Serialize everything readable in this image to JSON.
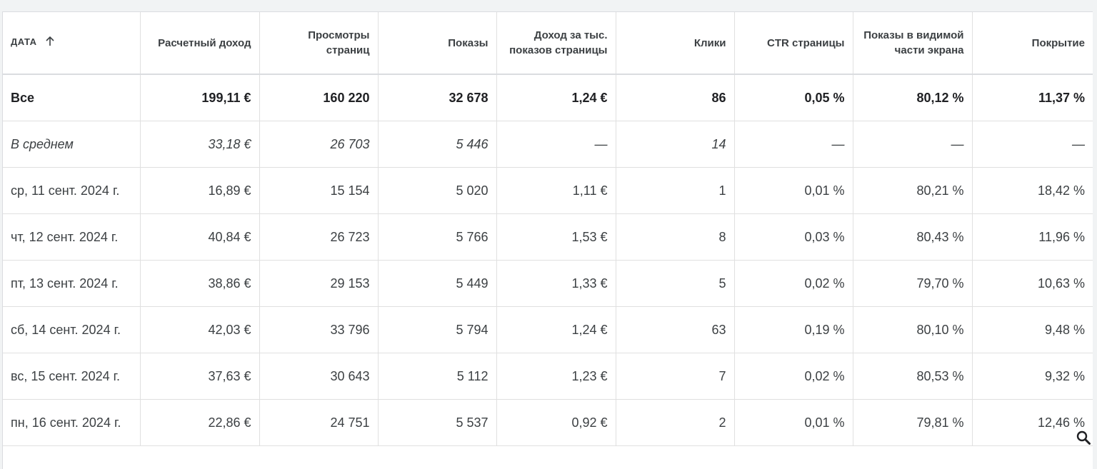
{
  "table": {
    "headers": [
      "ДАТА",
      "Расчетный доход",
      "Просмотры страниц",
      "Показы",
      "Доход за тыс. показов страницы",
      "Клики",
      "CTR страницы",
      "Показы в видимой части экрана",
      "Покрытие"
    ],
    "sort": {
      "column": "ДАТА",
      "direction": "asc",
      "icon": "arrow-up-icon"
    },
    "total": [
      "Все",
      "199,11 €",
      "160 220",
      "32 678",
      "1,24 €",
      "86",
      "0,05 %",
      "80,12 %",
      "11,37 %"
    ],
    "average": [
      "В среднем",
      "33,18 €",
      "26 703",
      "5 446",
      "—",
      "14",
      "—",
      "—",
      "—"
    ],
    "rows": [
      [
        "ср, 11 сент. 2024 г.",
        "16,89 €",
        "15 154",
        "5 020",
        "1,11 €",
        "1",
        "0,01 %",
        "80,21 %",
        "18,42 %"
      ],
      [
        "чт, 12 сент. 2024 г.",
        "40,84 €",
        "26 723",
        "5 766",
        "1,53 €",
        "8",
        "0,03 %",
        "80,43 %",
        "11,96 %"
      ],
      [
        "пт, 13 сент. 2024 г.",
        "38,86 €",
        "29 153",
        "5 449",
        "1,33 €",
        "5",
        "0,02 %",
        "79,70 %",
        "10,63 %"
      ],
      [
        "сб, 14 сент. 2024 г.",
        "42,03 €",
        "33 796",
        "5 794",
        "1,24 €",
        "63",
        "0,19 %",
        "80,10 %",
        "9,48 %"
      ],
      [
        "вс, 15 сент. 2024 г.",
        "37,63 €",
        "30 643",
        "5 112",
        "1,23 €",
        "7",
        "0,02 %",
        "80,53 %",
        "9,32 %"
      ],
      [
        "пн, 16 сент. 2024 г.",
        "22,86 €",
        "24 751",
        "5 537",
        "0,92 €",
        "2",
        "0,01 %",
        "79,81 %",
        "12,46 %"
      ]
    ]
  },
  "zoom_icon": "magnifier-icon"
}
